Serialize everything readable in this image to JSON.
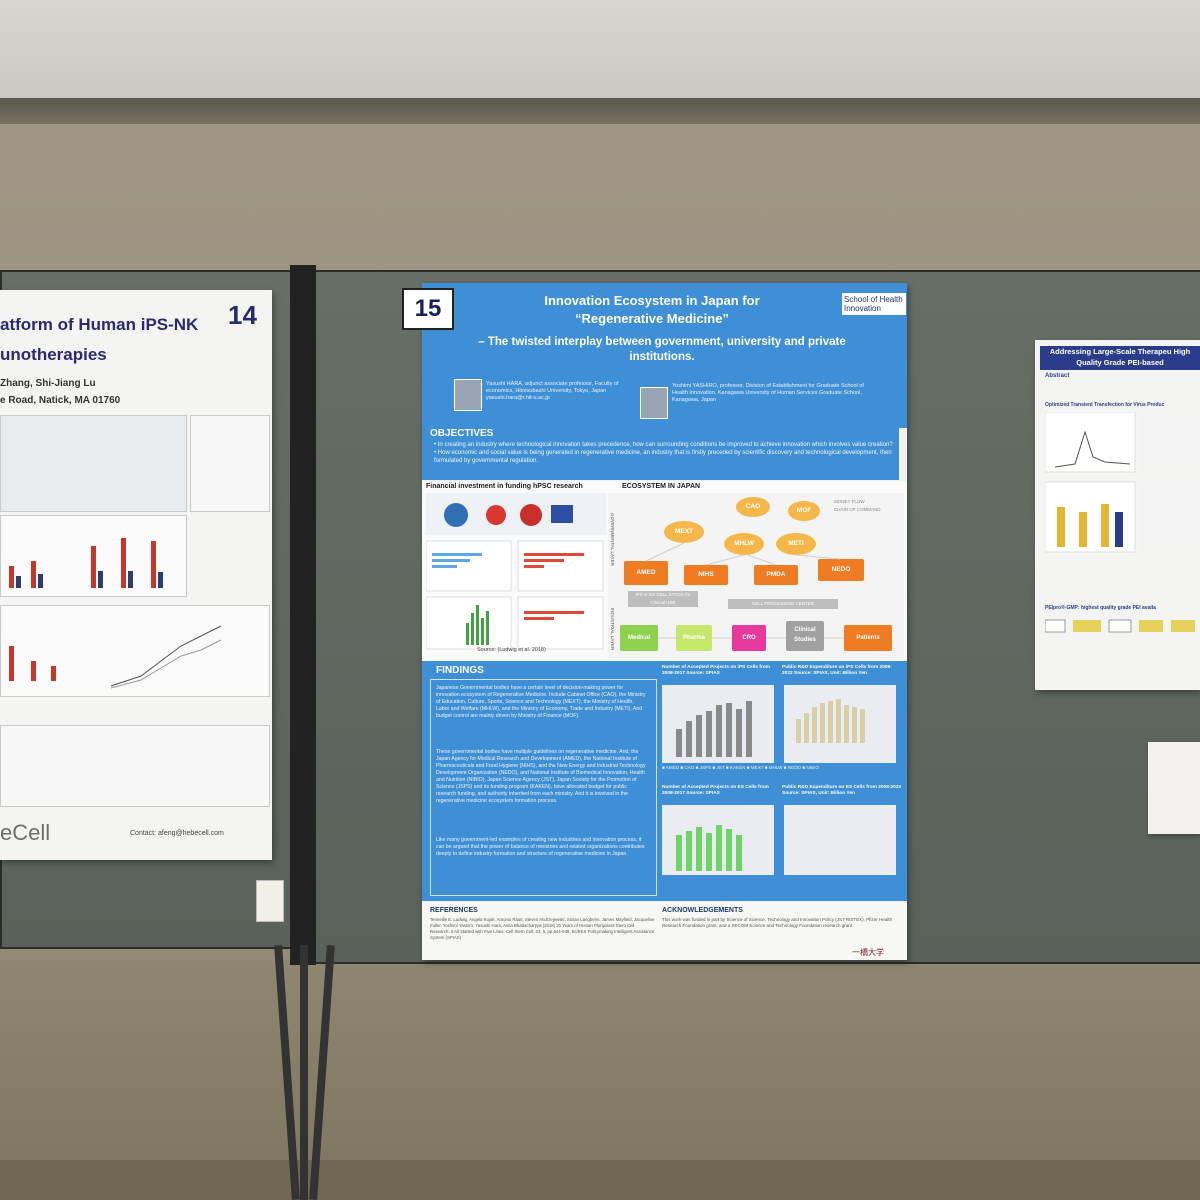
{
  "left_poster": {
    "title_line1": "atform of Human iPS-NK",
    "title_line2": "unotherapies",
    "number": "14",
    "authors": "Zhang, Shi-Jiang Lu",
    "address": "e Road, Natick, MA 01760",
    "logo_text": "eCell",
    "contact": "Contact: afeng@hebecell.com"
  },
  "main_poster": {
    "number": "15",
    "title_line1": "Innovation Ecosystem in Japan for",
    "title_line2": "“Regenerative Medicine”",
    "subtitle": "– The twisted interplay between government, university and private institutions.",
    "school_logo": "School of Health Innovation",
    "author1": "Yasushi HARA, adjunct associate professor, Faculty of economics, Hitotsubashi University, Tokyo, Japan yasushi.hara@r.hit-u.ac.jp",
    "author2": "Yoshimi YASHIRO, professor, Division of Establishment for Graduate School of Health Innovation, Kanagawa University of Human Services Graduate School, Kanagawa, Japan",
    "objectives_title": "OBJECTIVES",
    "objectives": [
      "• In creating an industry where technological innovation takes precedence, how can surrounding conditions be improved to achieve innovation which involves value creation?",
      "• How economic and social value is being generated in regenerative medicine, an industry that is firstly preceded by scientific discovery and technological development, then formulated by governmental regulation."
    ],
    "financial_title": "Financial investment in funding hPSC research",
    "ecosystem_title": "ECOSYSTEM IN JAPAN",
    "source": "Source: (Ludwig et al. 2018)",
    "nodes": [
      "CAO",
      "MOF",
      "MEXT",
      "MHLW",
      "METI"
    ],
    "agencies": [
      "AMED",
      "NIHS",
      "PMDA",
      "NEDO"
    ],
    "flow": [
      "Medical",
      "Pharma",
      "CRO",
      "Clinical Studies",
      "Patients"
    ],
    "cell_stock": "iPS or ES CELL STOCK for Clinical USE",
    "cell_center": "CELL PROCESSING CENTER",
    "gov_layer": "GOVERNMENTAL LAYER",
    "ind_layer": "INDUSTRIAL LAYER",
    "legend_money": "MONEY FLOW",
    "legend_chain": "CHAIN OF COMMAND",
    "findings_title": "FINDINGS",
    "findings": [
      "Japanese Governmental bodies have a certain level of decision-making power for innovation ecosystem of Regenerative Medicine. Include Cabinet Office (CAO), the Ministry of Education, Culture, Sports, Science and Technology (MEXT), the Ministry of Health, Labor and Welfare (MHLW), and the Ministry of Economy, Trade and Industry (METI). And budget control are mainly driven by Ministry of Finance (MOF).",
      "These governmental bodies have multiple guidelines on regenerative medicine. And, the Japan Agency for Medical Research and Development (AMED), the National Institute of Pharmaceuticals and Food Hygiene (NIHS), and the New Energy and Industrial Technology Development Organization (NEDO), and National Institute of Biomedical Innovation, Health and Nutrition (NIBIO), Japan Science Agency (JST), Japan Society for the Promotion of Science (JSPS) and its funding program (KAKEN), have allocated budget for public research funding, and authority inherited from each ministry. And it is involved in the regenerative medicine ecosystem formation process.",
      "Like many government-led examples of creating new industries and innovation process, it can be argued that the power of balance of ministries and related organizations contributes deeply to define industry formation and structure of regenerative medicine in Japan."
    ],
    "chart1_title": "Number of Accepted Projects on iPS Cells from 2008-2017 Source: SPIAS",
    "chart2_title": "Public R&D Expenditure on iPS Cells from 2008-2022 Source: SPIAS, Unit: Billion Yen",
    "chart3_title": "Number of Accepted Projects on ES Cells from 2008-2017 Source: SPIAS",
    "chart4_title": "Public R&D Expenditure on ES Cells from 2008-2022 Source: SPIAS, Unit: Billion Yen",
    "chart_legend": "■ AMED ■ CAO ■ JSPS ■ JST ■ KAKEN ■ MEXT ■ MHLW ■ NEDO ■ NIBIO",
    "references_title": "REFERENCES",
    "references": "Tenneille E. Ludwig, Angela Kujak, Antonio Rauti, Steven Andrzejewski, Susan Langbehn, James Mayfield, Jacqueline Fuller, Yoshimi Yashiro, Yasushi Hara, Anita Bhattacharyya (2018) 20 Years of Human Pluripotent Stem Cell Research: It All Started with Five Lines. Cell Stem Cell, 23, 5, pp.644-648. SciREX Policymaking Intelligent Assistance System (SPIAS)",
    "ack_title": "ACKNOWLEDGEMENTS",
    "ack": "This work was funded in part by Science of Science, Technology and Innovation Policy (JST RISTEX), Pfizer Health Research Foundation grant, and a SECOM Science and Technology Foundation research grant.",
    "univ_logo": "一橋大学"
  },
  "right_poster": {
    "title": "Addressing Large-Scale Therapeu High Quality Grade PEI-based",
    "abstract": "Abstract",
    "section1": "Optimized Transient Transfection for Virus Produc",
    "section2": "PElpro®-GMP: highest quality grade PEI availa"
  }
}
